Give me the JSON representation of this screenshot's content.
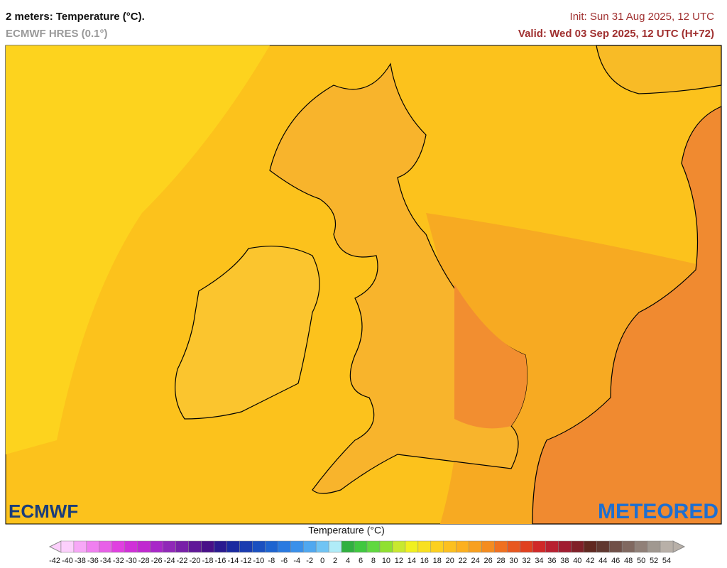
{
  "header": {
    "title": "2 meters: Temperature (°C).",
    "model": "ECMWF HRES (0.1°)",
    "init": "Init: Sun 31 Aug 2025, 12 UTC",
    "valid": "Valid: Wed 03 Sep 2025, 12 UTC (H+72)"
  },
  "logos": {
    "left": "ECMWF",
    "right": "METEORED"
  },
  "legend": {
    "title": "Temperature (°C)",
    "ticks": [
      -42,
      -40,
      -38,
      -36,
      -34,
      -32,
      -30,
      -28,
      -26,
      -24,
      -22,
      -20,
      -18,
      -16,
      -14,
      -12,
      -10,
      -8,
      -6,
      -4,
      -2,
      0,
      2,
      4,
      6,
      8,
      10,
      12,
      14,
      16,
      18,
      20,
      22,
      24,
      26,
      28,
      30,
      32,
      34,
      36,
      38,
      40,
      42,
      44,
      46,
      48,
      50,
      52,
      54
    ],
    "colors": [
      "#fcd0fc",
      "#f7a8f7",
      "#f080f0",
      "#e860e8",
      "#e040e0",
      "#d030d8",
      "#c028d0",
      "#a828c8",
      "#9028b8",
      "#7820a8",
      "#601898",
      "#481088",
      "#2a1a90",
      "#1a2aa0",
      "#1a3cb0",
      "#1a50c0",
      "#1e64d0",
      "#2a7ae0",
      "#3a90ea",
      "#50a8f0",
      "#70c4f4",
      "#b0ecf8",
      "#30b040",
      "#40c840",
      "#60d840",
      "#90e030",
      "#c8e830",
      "#f0f020",
      "#f8e020",
      "#fcd020",
      "#fcc020",
      "#fcb020",
      "#f8a020",
      "#f48c20",
      "#f07020",
      "#e85820",
      "#e04020",
      "#d02828",
      "#b82030",
      "#a01c30",
      "#802028",
      "#602820",
      "#603830",
      "#705048",
      "#806860",
      "#908078",
      "#a09890",
      "#b8b0a8"
    ]
  }
}
